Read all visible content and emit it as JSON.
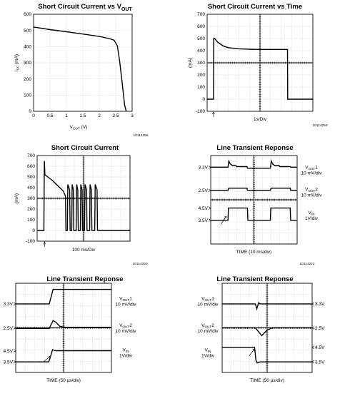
{
  "chart_data": [
    {
      "type": "line",
      "title": "Short Circuit Current vs V",
      "title_sub": "OUT",
      "xlabel": "V",
      "xlabel_sub": "OUT",
      "xlabel_unit": "(V)",
      "ylabel": "I",
      "ylabel_sub": "SC",
      "ylabel_unit": "(mA)",
      "xlim": [
        0,
        3
      ],
      "ylim": [
        0,
        600
      ],
      "x_ticks": [
        "0",
        "0.5",
        "1",
        "1.5",
        "2",
        "2.5",
        "3"
      ],
      "y_ticks": [
        "0",
        "100",
        "200",
        "300",
        "400",
        "500",
        "600"
      ],
      "grid": true,
      "figure_id": "10114258",
      "series": [
        {
          "x": [
            0,
            0.1,
            0.5,
            1.0,
            1.5,
            2.0,
            2.3,
            2.45,
            2.55,
            2.62,
            2.7,
            2.77,
            2.82
          ],
          "y": [
            520,
            518,
            505,
            492,
            478,
            463,
            450,
            440,
            405,
            310,
            170,
            40,
            0
          ]
        }
      ]
    },
    {
      "type": "line",
      "title": "Short Circuit Current vs Time",
      "ylabel_unit": "(mA)",
      "xlabel": "1s/Div",
      "xlim": [
        0,
        10
      ],
      "ylim": [
        -100,
        700
      ],
      "y_ticks": [
        "-100",
        "0",
        "100",
        "200",
        "300",
        "400",
        "500",
        "600",
        "700"
      ],
      "grid": true,
      "figure_id": "10114259",
      "series": [
        {
          "x": [
            0,
            0.6,
            0.62,
            0.7,
            1,
            1.5,
            2,
            3,
            4,
            5,
            6,
            7,
            7.6,
            7.62,
            10
          ],
          "y": [
            0,
            0,
            500,
            500,
            470,
            440,
            425,
            415,
            412,
            410,
            410,
            410,
            410,
            0,
            0
          ]
        }
      ]
    },
    {
      "type": "line",
      "title": "Short Circuit Current",
      "ylabel_unit": "(mA)",
      "xlabel": "100 ms/Div",
      "xlim": [
        0,
        10
      ],
      "ylim": [
        -100,
        700
      ],
      "y_ticks": [
        "-100",
        "0",
        "100",
        "200",
        "300",
        "400",
        "500",
        "600",
        "700"
      ],
      "grid": true,
      "figure_id": "10114260",
      "series": [
        {
          "x": [
            0,
            0.7,
            0.72,
            0.78,
            0.84,
            1.0,
            1.6,
            2.2,
            2.8,
            3.05,
            3.1,
            3.25,
            3.3,
            3.5,
            3.55,
            3.72,
            3.77,
            3.9,
            3.95,
            4.2,
            4.25,
            4.38,
            4.43,
            4.65,
            4.7,
            4.84,
            4.89,
            5.1,
            5.15,
            5.32,
            5.37,
            5.65,
            5.7,
            5.84,
            5.89,
            6.2,
            6.25,
            6.45,
            6.5,
            10
          ],
          "y": [
            0,
            0,
            0,
            650,
            520,
            510,
            470,
            420,
            370,
            320,
            0,
            0,
            430,
            380,
            0,
            0,
            430,
            380,
            0,
            0,
            430,
            380,
            0,
            0,
            430,
            380,
            0,
            0,
            430,
            380,
            0,
            0,
            430,
            380,
            0,
            0,
            430,
            380,
            0,
            0
          ]
        }
      ]
    },
    {
      "type": "line",
      "title": "Line Transient Reponse",
      "xlabel": "TIME (10 ms/div)",
      "figure_id": "10114222",
      "grid": true,
      "labels_left": [
        "3.3V",
        "2.5V",
        "4.5V",
        "3.5V"
      ],
      "labels_right": [
        {
          "name": "V",
          "sub": "OUT",
          "suffix": "1",
          "scale": "10 mV/div"
        },
        {
          "name": "V",
          "sub": "OUT",
          "suffix": "2",
          "scale": "10 mV/div"
        },
        {
          "name": "V",
          "sub": "IN",
          "suffix": "",
          "scale": "1V/div"
        }
      ]
    },
    {
      "type": "line",
      "title": "Line Transient Reponse",
      "xlabel": "TIME (50 µs/div)",
      "grid": true,
      "labels_left": [
        "3.3V",
        "2.5V",
        "4.5V",
        "3.5V"
      ],
      "labels_right": [
        {
          "name": "V",
          "sub": "OUT",
          "suffix": "1",
          "scale": "10 mV/div"
        },
        {
          "name": "V",
          "sub": "OUT",
          "suffix": "2",
          "scale": "10 mV/div"
        },
        {
          "name": "V",
          "sub": "IN",
          "suffix": "",
          "scale": "1V/div"
        }
      ]
    },
    {
      "type": "line",
      "title": "Line Transient Reponse",
      "xlabel": "TIME (50 µs/div)",
      "grid": true,
      "labels_left": [
        {
          "name": "V",
          "sub": "OUT",
          "suffix": "1",
          "scale": "10 mV/div"
        },
        {
          "name": "V",
          "sub": "OUT",
          "suffix": "2",
          "scale": "10 mV/div"
        },
        {
          "name": "V",
          "sub": "IN",
          "suffix": "",
          "scale": "1V/div"
        }
      ],
      "labels_right": [
        "3.3V",
        "2.5V",
        "4.5V",
        "3.5V"
      ]
    }
  ]
}
